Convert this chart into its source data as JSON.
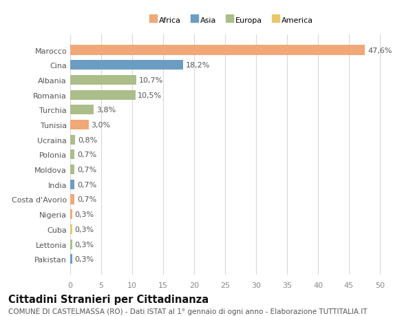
{
  "categories": [
    "Pakistan",
    "Lettonia",
    "Cuba",
    "Nigeria",
    "Costa d'Avorio",
    "India",
    "Moldova",
    "Polonia",
    "Ucraina",
    "Tunisia",
    "Turchia",
    "Romania",
    "Albania",
    "Cina",
    "Marocco"
  ],
  "values": [
    0.3,
    0.3,
    0.3,
    0.3,
    0.7,
    0.7,
    0.7,
    0.7,
    0.8,
    3.0,
    3.8,
    10.5,
    10.7,
    18.2,
    47.6
  ],
  "labels": [
    "0,3%",
    "0,3%",
    "0,3%",
    "0,3%",
    "0,7%",
    "0,7%",
    "0,7%",
    "0,7%",
    "0,8%",
    "3,0%",
    "3,8%",
    "10,5%",
    "10,7%",
    "18,2%",
    "47,6%"
  ],
  "colors": [
    "#6b9dc2",
    "#abbe8a",
    "#e8c86a",
    "#f0a878",
    "#f0a878",
    "#6b9dc2",
    "#abbe8a",
    "#abbe8a",
    "#abbe8a",
    "#f0a878",
    "#abbe8a",
    "#abbe8a",
    "#abbe8a",
    "#6b9dc2",
    "#f0a878"
  ],
  "legend_labels": [
    "Africa",
    "Asia",
    "Europa",
    "America"
  ],
  "legend_colors": [
    "#f0a878",
    "#6b9dc2",
    "#abbe8a",
    "#e8c86a"
  ],
  "title": "Cittadini Stranieri per Cittadinanza",
  "subtitle": "COMUNE DI CASTELMASSA (RO) - Dati ISTAT al 1° gennaio di ogni anno - Elaborazione TUTTITALIA.IT",
  "xlim": [
    0,
    52
  ],
  "xticks": [
    0,
    5,
    10,
    15,
    20,
    25,
    30,
    35,
    40,
    45,
    50
  ],
  "bg_color": "#ffffff",
  "grid_color": "#d8d8d8",
  "bar_height": 0.65,
  "label_fontsize": 8.0,
  "tick_fontsize": 8.0,
  "title_fontsize": 10.5,
  "subtitle_fontsize": 7.5
}
